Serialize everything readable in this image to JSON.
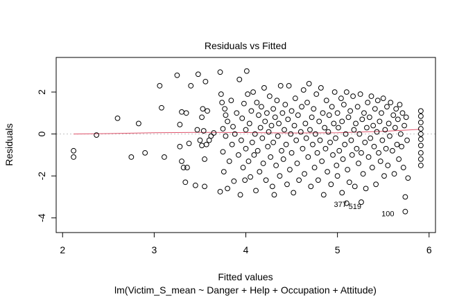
{
  "chart_data": {
    "type": "scatter",
    "title": "Residuals vs Fitted",
    "xlabel": "Fitted values",
    "sublabel": "lm(Victim_S_mean ~ Danger + Help + Occupation + Attitude)",
    "ylabel": "Residuals",
    "xlim": [
      1.93,
      6.07
    ],
    "ylim": [
      -4.7,
      3.65
    ],
    "xticks": [
      2,
      3,
      4,
      5,
      6
    ],
    "yticks": [
      -4,
      -2,
      0,
      2
    ],
    "reference_line_y": 0,
    "colors": {
      "points": "#000000",
      "smooth": "#DF536B",
      "reference": "#BEBEBE"
    },
    "labels": [
      {
        "text": "377",
        "x": 5.1,
        "y": -3.35
      },
      {
        "text": "519",
        "x": 5.26,
        "y": -3.45
      },
      {
        "text": "100",
        "x": 5.62,
        "y": -3.8
      }
    ],
    "smooth": [
      [
        2.12,
        0.0
      ],
      [
        2.5,
        0.02
      ],
      [
        3.0,
        0.06
      ],
      [
        3.5,
        0.08
      ],
      [
        4.0,
        0.07
      ],
      [
        4.5,
        0.05
      ],
      [
        5.0,
        0.06
      ],
      [
        5.5,
        0.13
      ],
      [
        5.9,
        0.22
      ]
    ],
    "points": [
      [
        2.12,
        -0.8
      ],
      [
        2.12,
        -1.1
      ],
      [
        2.37,
        -0.05
      ],
      [
        2.6,
        0.75
      ],
      [
        2.75,
        -1.1
      ],
      [
        2.83,
        0.5
      ],
      [
        2.9,
        -0.9
      ],
      [
        3.06,
        2.3
      ],
      [
        3.08,
        1.25
      ],
      [
        3.11,
        -1.1
      ],
      [
        3.25,
        2.8
      ],
      [
        3.28,
        0.45
      ],
      [
        3.28,
        -0.6
      ],
      [
        3.3,
        1.05
      ],
      [
        3.3,
        -1.3
      ],
      [
        3.32,
        -1.6
      ],
      [
        3.34,
        -2.3
      ],
      [
        3.35,
        1.0
      ],
      [
        3.36,
        -1.6
      ],
      [
        3.38,
        -0.45
      ],
      [
        3.4,
        2.3
      ],
      [
        3.45,
        -2.45
      ],
      [
        3.47,
        0.2
      ],
      [
        3.48,
        2.85
      ],
      [
        3.5,
        -0.3
      ],
      [
        3.52,
        -0.55
      ],
      [
        3.52,
        0.8
      ],
      [
        3.53,
        1.2
      ],
      [
        3.54,
        0.15
      ],
      [
        3.55,
        -1.2
      ],
      [
        3.55,
        -2.5
      ],
      [
        3.56,
        2.5
      ],
      [
        3.57,
        -0.5
      ],
      [
        3.58,
        1.1
      ],
      [
        3.6,
        -0.3
      ],
      [
        3.62,
        -0.1
      ],
      [
        3.65,
        0.05
      ],
      [
        3.72,
        2.95
      ],
      [
        3.72,
        -2.75
      ],
      [
        3.73,
        1.9
      ],
      [
        3.74,
        1.5
      ],
      [
        3.75,
        0.25
      ],
      [
        3.75,
        -0.85
      ],
      [
        3.76,
        -1.8
      ],
      [
        3.77,
        1.2
      ],
      [
        3.78,
        0.9
      ],
      [
        3.78,
        -0.1
      ],
      [
        3.8,
        -2.6
      ],
      [
        3.8,
        0.6
      ],
      [
        3.82,
        -1.3
      ],
      [
        3.84,
        1.6
      ],
      [
        3.85,
        -0.5
      ],
      [
        3.86,
        0.35
      ],
      [
        3.87,
        -2.25
      ],
      [
        3.88,
        0.0
      ],
      [
        3.9,
        1.0
      ],
      [
        3.92,
        -1.0
      ],
      [
        3.93,
        2.6
      ],
      [
        3.94,
        -2.9
      ],
      [
        3.95,
        -0.3
      ],
      [
        3.96,
        0.75
      ],
      [
        3.97,
        -1.6
      ],
      [
        3.98,
        1.45
      ],
      [
        3.99,
        -2.2
      ],
      [
        4.0,
        0.2
      ],
      [
        4.0,
        -0.7
      ],
      [
        4.01,
        3.0
      ],
      [
        4.02,
        1.9
      ],
      [
        4.03,
        -1.3
      ],
      [
        4.04,
        0.5
      ],
      [
        4.05,
        -2.05
      ],
      [
        4.06,
        1.1
      ],
      [
        4.07,
        -0.4
      ],
      [
        4.08,
        2.0
      ],
      [
        4.09,
        -1.0
      ],
      [
        4.1,
        0.0
      ],
      [
        4.11,
        -2.7
      ],
      [
        4.12,
        1.5
      ],
      [
        4.13,
        -0.8
      ],
      [
        4.14,
        0.9
      ],
      [
        4.15,
        -1.8
      ],
      [
        4.16,
        0.3
      ],
      [
        4.17,
        1.3
      ],
      [
        4.18,
        -0.2
      ],
      [
        4.19,
        -1.4
      ],
      [
        4.2,
        2.2
      ],
      [
        4.21,
        0.6
      ],
      [
        4.22,
        -2.2
      ],
      [
        4.23,
        1.0
      ],
      [
        4.24,
        -0.6
      ],
      [
        4.25,
        0.1
      ],
      [
        4.26,
        1.8
      ],
      [
        4.27,
        -1.1
      ],
      [
        4.28,
        0.4
      ],
      [
        4.29,
        -2.5
      ],
      [
        4.3,
        1.2
      ],
      [
        4.3,
        -0.4
      ],
      [
        4.31,
        -2.9
      ],
      [
        4.32,
        0.8
      ],
      [
        4.33,
        -1.5
      ],
      [
        4.34,
        1.6
      ],
      [
        4.35,
        -0.1
      ],
      [
        4.36,
        0.5
      ],
      [
        4.37,
        -2.0
      ],
      [
        4.38,
        2.3
      ],
      [
        4.39,
        -0.8
      ],
      [
        4.4,
        1.0
      ],
      [
        4.41,
        -1.2
      ],
      [
        4.42,
        0.2
      ],
      [
        4.43,
        1.4
      ],
      [
        4.44,
        -0.5
      ],
      [
        4.45,
        -2.4
      ],
      [
        4.46,
        0.7
      ],
      [
        4.47,
        2.3
      ],
      [
        4.48,
        -1.7
      ],
      [
        4.49,
        0.0
      ],
      [
        4.5,
        1.1
      ],
      [
        4.5,
        -0.9
      ],
      [
        4.52,
        -2.8
      ],
      [
        4.53,
        0.4
      ],
      [
        4.54,
        1.7
      ],
      [
        4.55,
        -0.3
      ],
      [
        4.56,
        -1.4
      ],
      [
        4.57,
        0.9
      ],
      [
        4.58,
        -2.2
      ],
      [
        4.6,
        0.1
      ],
      [
        4.61,
        1.3
      ],
      [
        4.62,
        -0.7
      ],
      [
        4.63,
        2.1
      ],
      [
        4.64,
        -1.9
      ],
      [
        4.65,
        0.5
      ],
      [
        4.66,
        -0.2
      ],
      [
        4.67,
        1.5
      ],
      [
        4.68,
        -1.1
      ],
      [
        4.69,
        2.4
      ],
      [
        4.7,
        0.2
      ],
      [
        4.71,
        -2.5
      ],
      [
        4.72,
        0.8
      ],
      [
        4.73,
        -0.5
      ],
      [
        4.74,
        1.2
      ],
      [
        4.75,
        -1.6
      ],
      [
        4.76,
        0.0
      ],
      [
        4.77,
        1.9
      ],
      [
        4.78,
        -0.9
      ],
      [
        4.79,
        -2.2
      ],
      [
        4.8,
        0.6
      ],
      [
        4.81,
        -0.3
      ],
      [
        4.82,
        2.2
      ],
      [
        4.83,
        -1.3
      ],
      [
        4.84,
        1.0
      ],
      [
        4.85,
        -2.9
      ],
      [
        4.86,
        0.3
      ],
      [
        4.87,
        -0.7
      ],
      [
        4.88,
        1.6
      ],
      [
        4.89,
        -1.8
      ],
      [
        4.9,
        0.1
      ],
      [
        4.91,
        0.9
      ],
      [
        4.92,
        -0.4
      ],
      [
        4.93,
        -2.4
      ],
      [
        4.94,
        1.3
      ],
      [
        4.95,
        -1.0
      ],
      [
        4.96,
        0.5
      ],
      [
        4.97,
        2.0
      ],
      [
        4.98,
        -0.2
      ],
      [
        4.99,
        -1.5
      ],
      [
        5.0,
        1.0
      ],
      [
        5.0,
        -2.0
      ],
      [
        5.01,
        0.3
      ],
      [
        5.02,
        -0.8
      ],
      [
        5.04,
        1.7
      ],
      [
        5.05,
        -2.8
      ],
      [
        5.05,
        0.6
      ],
      [
        5.06,
        -1.2
      ],
      [
        5.07,
        1.4
      ],
      [
        5.08,
        -0.5
      ],
      [
        5.09,
        0.0
      ],
      [
        5.1,
        2.0
      ],
      [
        5.11,
        -1.7
      ],
      [
        5.12,
        0.8
      ],
      [
        5.13,
        -2.3
      ],
      [
        5.14,
        1.1
      ],
      [
        5.15,
        -0.3
      ],
      [
        5.16,
        -1.0
      ],
      [
        5.17,
        1.8
      ],
      [
        5.18,
        0.2
      ],
      [
        5.19,
        -2.5
      ],
      [
        5.2,
        0.5
      ],
      [
        5.21,
        -0.7
      ],
      [
        5.22,
        1.3
      ],
      [
        5.23,
        -1.4
      ],
      [
        5.24,
        0.0
      ],
      [
        5.25,
        1.9
      ],
      [
        5.26,
        -0.9
      ],
      [
        5.27,
        0.7
      ],
      [
        5.28,
        -1.9
      ],
      [
        5.29,
        1.0
      ],
      [
        5.3,
        -0.4
      ],
      [
        5.31,
        -2.6
      ],
      [
        5.32,
        0.3
      ],
      [
        5.33,
        1.5
      ],
      [
        5.34,
        -1.1
      ],
      [
        5.35,
        0.8
      ],
      [
        5.36,
        -0.2
      ],
      [
        5.37,
        1.8
      ],
      [
        5.38,
        -1.6
      ],
      [
        5.39,
        0.4
      ],
      [
        5.4,
        -0.6
      ],
      [
        5.41,
        1.2
      ],
      [
        5.42,
        -2.4
      ],
      [
        5.43,
        0.1
      ],
      [
        5.44,
        1.6
      ],
      [
        5.45,
        -0.9
      ],
      [
        5.46,
        0.6
      ],
      [
        5.47,
        -1.3
      ],
      [
        5.48,
        1.0
      ],
      [
        5.49,
        -0.3
      ],
      [
        5.5,
        1.7
      ],
      [
        5.51,
        -2.0
      ],
      [
        5.52,
        0.2
      ],
      [
        5.53,
        -0.7
      ],
      [
        5.54,
        1.3
      ],
      [
        5.55,
        -1.5
      ],
      [
        5.56,
        0.5
      ],
      [
        5.57,
        -0.1
      ],
      [
        5.58,
        1.5
      ],
      [
        5.6,
        -0.8
      ],
      [
        5.61,
        0.9
      ],
      [
        5.62,
        -1.9
      ],
      [
        5.63,
        0.3
      ],
      [
        5.64,
        1.2
      ],
      [
        5.65,
        -0.5
      ],
      [
        5.66,
        0.7
      ],
      [
        5.67,
        -1.2
      ],
      [
        5.68,
        1.4
      ],
      [
        5.69,
        0.0
      ],
      [
        5.7,
        -0.6
      ],
      [
        5.71,
        1.0
      ],
      [
        5.72,
        -1.6
      ],
      [
        5.73,
        0.4
      ],
      [
        5.74,
        -3.0
      ],
      [
        5.74,
        -3.7
      ],
      [
        5.75,
        0.8
      ],
      [
        5.76,
        -0.3
      ],
      [
        5.77,
        -2.1
      ],
      [
        5.1,
        -3.3
      ],
      [
        5.26,
        -3.25
      ],
      [
        5.91,
        1.1
      ],
      [
        5.91,
        0.85
      ],
      [
        5.91,
        0.55
      ],
      [
        5.91,
        0.25
      ],
      [
        5.91,
        -0.25
      ],
      [
        5.91,
        -0.55
      ],
      [
        5.91,
        -0.9
      ],
      [
        5.91,
        -1.2
      ],
      [
        5.91,
        -1.5
      ],
      [
        5.91,
        0.0
      ]
    ]
  }
}
